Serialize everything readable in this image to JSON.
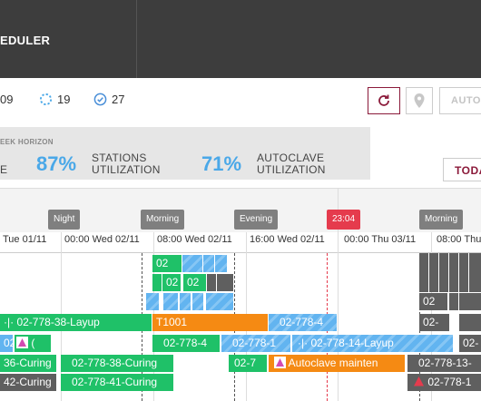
{
  "header": {
    "title": "EDULER"
  },
  "status": {
    "count_a": "09",
    "count_b": "19",
    "count_c": "27"
  },
  "toolbar": {
    "auto_label": "AUTO"
  },
  "kpi": {
    "title": "EEK HORIZON",
    "left_fragment": "E",
    "stations_value": "87%",
    "stations_label_1": "STATIONS",
    "stations_label_2": "UTILIZATION",
    "autoclave_value": "71%",
    "autoclave_label_1": "AUTOCLAVE",
    "autoclave_label_2": "UTILIZATION",
    "today_label": "TODA"
  },
  "shifts": {
    "night": "Night",
    "morning": "Morning",
    "evening": "Evening",
    "now": "23:04",
    "morning2": "Morning"
  },
  "ticks": {
    "t0": "Tue 01/11",
    "t1": "00:00 Wed 02/11",
    "t2": "08:00 Wed 02/11",
    "t3": "16:00 Wed 02/11",
    "t4": "00:00 Thu 03/11",
    "t5": "08:00 Thu"
  },
  "bars": {
    "r1_a": "02",
    "r2_a": "02",
    "r2_b": "02",
    "r4_a": "02",
    "r5_layup": "02-778-38-Layup",
    "r5_t1001": "T1001",
    "r5_c": "02-778-4",
    "r5_d": "02-",
    "r6_a": "02-",
    "r6_b": "02-778-4",
    "r6_c": "02-778-1",
    "r6_layup14": "02-778-14-Layup",
    "r6_d": "02-",
    "r7_a": "36-Curing",
    "r7_b": "02-778-38-Curing",
    "r7_c": "02-7",
    "r7_maint": "Autoclave mainten",
    "r7_d": "02-778-13-",
    "r8_a": "42-Curing",
    "r8_b": "02-778-41-Curing",
    "r8_c": "02-778-1"
  },
  "colors": {
    "header_bg": "#3d3d3d",
    "accent": "#8b1a3a",
    "green": "#1fc168",
    "blue": "#62b4f0",
    "orange": "#f58a13",
    "now_red": "#e53b4d"
  }
}
